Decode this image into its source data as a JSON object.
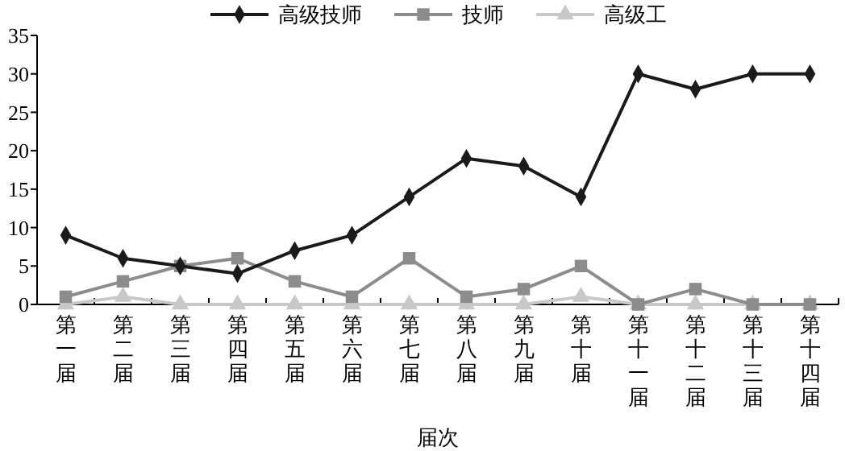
{
  "chart_data": {
    "type": "line",
    "xlabel": "届次",
    "categories": [
      "第一届",
      "第二届",
      "第三届",
      "第四届",
      "第五届",
      "第六届",
      "第七届",
      "第八届",
      "第九届",
      "第十届",
      "第十一届",
      "第十二届",
      "第十三届",
      "第十四届"
    ],
    "series": [
      {
        "name": "高级技师",
        "color": "#1a1a1a",
        "marker": "diamond",
        "values": [
          9,
          6,
          5,
          4,
          7,
          9,
          14,
          19,
          18,
          14,
          30,
          28,
          30,
          30
        ]
      },
      {
        "name": "技师",
        "color": "#8c8c8c",
        "marker": "square",
        "values": [
          1,
          3,
          5,
          6,
          3,
          1,
          6,
          1,
          2,
          5,
          0,
          2,
          0,
          0
        ]
      },
      {
        "name": "高级工",
        "color": "#c8c8c8",
        "marker": "triangle",
        "values": [
          0,
          1,
          0,
          0,
          0,
          0,
          0,
          0,
          0,
          1,
          0,
          0,
          0,
          0
        ]
      }
    ],
    "ylim": [
      0,
      35
    ],
    "yticks": [
      0,
      5,
      10,
      15,
      20,
      25,
      30,
      35
    ],
    "legend": "top",
    "grid": false
  }
}
